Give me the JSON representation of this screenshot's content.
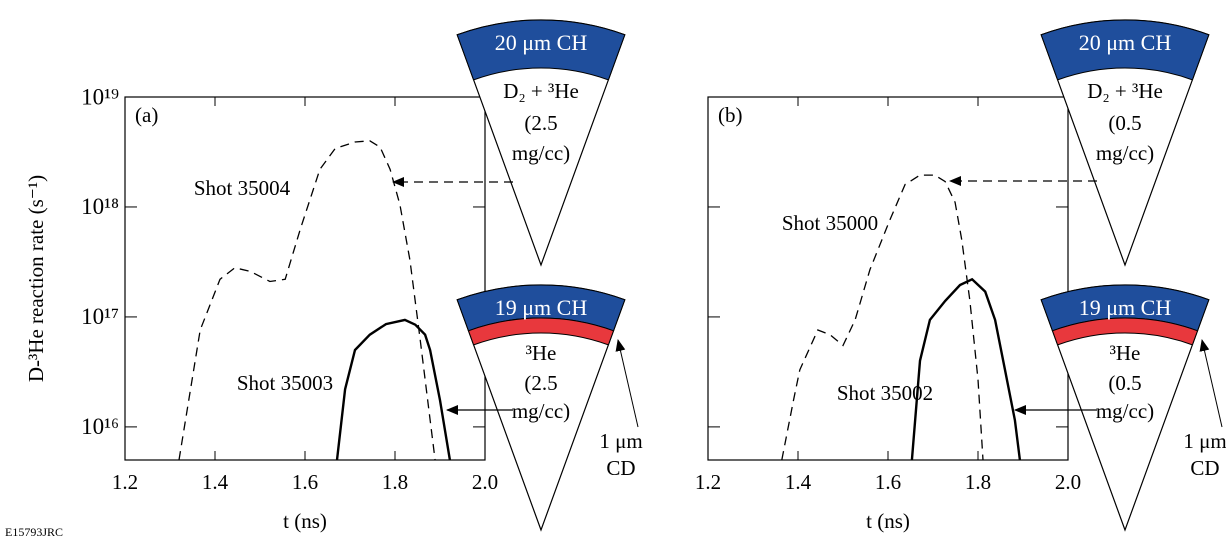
{
  "chart_data": [
    {
      "type": "line",
      "panel_label": "(a)",
      "xlabel": "t (ns)",
      "ylabel": "D-³He reaction rate (s⁻¹)",
      "xlim": [
        1.2,
        2.0
      ],
      "xticks": [
        1.2,
        1.4,
        1.6,
        1.8,
        {
          "value": 2.0,
          "label": "2.0"
        }
      ],
      "ylim": [
        5000000000000000.0,
        1e+19
      ],
      "log_y": true,
      "yticks": [
        {
          "value": 1e+16,
          "label": "10¹⁶"
        },
        {
          "value": 1e+17,
          "label": "10¹⁷"
        },
        {
          "value": 1e+18,
          "label": "10¹⁸"
        },
        {
          "value": 1e+19,
          "label": "10¹⁹"
        }
      ],
      "series": [
        {
          "name": "Shot 35004",
          "color": "#000000",
          "dash": true,
          "x": [
            1.32,
            1.367,
            1.411,
            1.444,
            1.478,
            1.522,
            1.556,
            1.589,
            1.633,
            1.667,
            1.711,
            1.744,
            1.767,
            1.789,
            1.811,
            1.833,
            1.856,
            1.878,
            1.889
          ],
          "values": [
            5000000000000000.0,
            7.6e+16,
            2.2e+17,
            2.8e+17,
            2.6e+17,
            2.1e+17,
            2.2e+17,
            6.2e+17,
            2.2e+18,
            3.4e+18,
            3.9e+18,
            4e+18,
            3.5e+18,
            2.2e+18,
            1.05e+18,
            3.3e+17,
            6.2e+16,
            1.16e+16,
            5000000000000000.0
          ]
        },
        {
          "name": "Shot 35003",
          "color": "#000000",
          "dash": false,
          "x": [
            1.671,
            1.689,
            1.711,
            1.744,
            1.78,
            1.822,
            1.845,
            1.867,
            1.878,
            1.9,
            1.922
          ],
          "values": [
            5000000000000000.0,
            2.2e+16,
            5e+16,
            6.9e+16,
            8.6e+16,
            9.4e+16,
            8.5e+16,
            6.9e+16,
            5e+16,
            1.75e+16,
            5000000000000000.0
          ]
        }
      ]
    },
    {
      "type": "line",
      "panel_label": "(b)",
      "xlabel": "t (ns)",
      "xlim": [
        1.2,
        2.0
      ],
      "xticks": [
        1.2,
        1.4,
        1.6,
        1.8,
        {
          "value": 2.0,
          "label": "2.0"
        }
      ],
      "ylim": [
        5000000000000000.0,
        1e+19
      ],
      "log_y": true,
      "yticks": [
        {
          "value": 1e+16,
          "label": "10¹⁶"
        },
        {
          "value": 1e+17,
          "label": "10¹⁷"
        },
        {
          "value": 1e+18,
          "label": "10¹⁸"
        },
        {
          "value": 1e+19,
          "label": "10¹⁹"
        }
      ],
      "series": [
        {
          "name": "Shot 35000",
          "color": "#000000",
          "dash": true,
          "x": [
            1.364,
            1.39,
            1.404,
            1.444,
            1.471,
            1.5,
            1.527,
            1.56,
            1.604,
            1.638,
            1.671,
            1.704,
            1.727,
            1.749,
            1.764,
            1.782,
            1.8,
            1.811
          ],
          "values": [
            5000000000000000.0,
            1.75e+16,
            3.3e+16,
            7.6e+16,
            6.9e+16,
            5.5e+16,
            9.4e+16,
            2.7e+17,
            7.6e+17,
            1.6e+18,
            1.95e+18,
            1.95e+18,
            1.7e+18,
            1.1e+18,
            5e+17,
            1.4e+17,
            2.7e+16,
            5000000000000000.0
          ]
        },
        {
          "name": "Shot 35002",
          "color": "#000000",
          "dash": false,
          "x": [
            1.653,
            1.671,
            1.693,
            1.727,
            1.76,
            1.787,
            1.816,
            1.838,
            1.86,
            1.882,
            1.893
          ],
          "values": [
            5000000000000000.0,
            4e+16,
            9.4e+16,
            1.4e+17,
            1.95e+17,
            2.2e+17,
            1.7e+17,
            9.4e+16,
            3.3e+16,
            1.15e+16,
            5000000000000000.0
          ]
        }
      ]
    }
  ],
  "diagrams": [
    {
      "shell": "20 μm CH",
      "fill": [
        "D₂ + ³He",
        "(2.5",
        "mg/cc)"
      ]
    },
    {
      "shell": "19 μm CH",
      "fill": [
        "³He",
        "(2.5",
        "mg/cc)"
      ],
      "layer": [
        "1 μm",
        "CD"
      ]
    },
    {
      "shell": "20 μm CH",
      "fill": [
        "D₂ + ³He",
        "(0.5",
        "mg/cc)"
      ]
    },
    {
      "shell": "19 μm CH",
      "fill": [
        "³He",
        "(0.5",
        "mg/cc)"
      ],
      "layer": [
        "1 μm",
        "CD"
      ]
    }
  ],
  "footer": "E15793JRC"
}
